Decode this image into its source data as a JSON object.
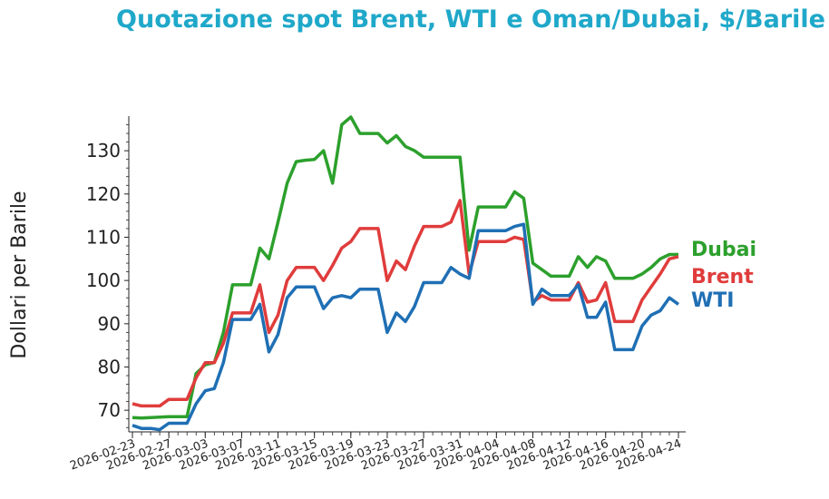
{
  "chart_data": {
    "type": "line",
    "title": "Quotazione spot Brent, WTI e Oman/Dubai, $/Barile",
    "xlabel": "",
    "ylabel": "Dollari per Barile",
    "xlim": [
      "2026-02-23",
      "2026-04-24"
    ],
    "ylim": [
      65,
      138
    ],
    "yticks": [
      70,
      80,
      90,
      100,
      110,
      120,
      130
    ],
    "xticks": [
      "2026-02-23",
      "2026-02-27",
      "2026-03-03",
      "2026-03-07",
      "2026-03-11",
      "2026-03-15",
      "2026-03-19",
      "2026-03-23",
      "2026-03-27",
      "2026-03-31",
      "2026-04-04",
      "2026-04-08",
      "2026-04-12",
      "2026-04-16",
      "2026-04-20",
      "2026-04-24"
    ],
    "grid": false,
    "legend": "none (labels at line ends, right)",
    "series": [
      {
        "name": "Dubai",
        "color": "#2ca02c",
        "points": [
          [
            "2026-02-23",
            68.3
          ],
          [
            "2026-02-24",
            68.2
          ],
          [
            "2026-02-25",
            68.3
          ],
          [
            "2026-02-26",
            68.4
          ],
          [
            "2026-02-27",
            68.5
          ],
          [
            "2026-02-28",
            68.5
          ],
          [
            "2026-03-01",
            68.5
          ],
          [
            "2026-03-02",
            78.5
          ],
          [
            "2026-03-03",
            80.5
          ],
          [
            "2026-03-04",
            81.0
          ],
          [
            "2026-03-05",
            88.0
          ],
          [
            "2026-03-06",
            99.0
          ],
          [
            "2026-03-07",
            99.0
          ],
          [
            "2026-03-08",
            99.0
          ],
          [
            "2026-03-09",
            107.5
          ],
          [
            "2026-03-10",
            105.0
          ],
          [
            "2026-03-11",
            113.5
          ],
          [
            "2026-03-12",
            122.5
          ],
          [
            "2026-03-13",
            127.5
          ],
          [
            "2026-03-14",
            127.8
          ],
          [
            "2026-03-15",
            128.0
          ],
          [
            "2026-03-16",
            130.0
          ],
          [
            "2026-03-17",
            122.5
          ],
          [
            "2026-03-18",
            136.0
          ],
          [
            "2026-03-19",
            137.8
          ],
          [
            "2026-03-20",
            134.0
          ],
          [
            "2026-03-21",
            134.0
          ],
          [
            "2026-03-22",
            134.0
          ],
          [
            "2026-03-23",
            131.8
          ],
          [
            "2026-03-24",
            133.5
          ],
          [
            "2026-03-25",
            131.0
          ],
          [
            "2026-03-26",
            130.0
          ],
          [
            "2026-03-27",
            128.5
          ],
          [
            "2026-03-28",
            128.5
          ],
          [
            "2026-03-29",
            128.5
          ],
          [
            "2026-03-30",
            128.5
          ],
          [
            "2026-03-31",
            128.5
          ],
          [
            "2026-04-01",
            107.0
          ],
          [
            "2026-04-02",
            117.0
          ],
          [
            "2026-04-03",
            117.0
          ],
          [
            "2026-04-04",
            117.0
          ],
          [
            "2026-04-05",
            117.0
          ],
          [
            "2026-04-06",
            120.5
          ],
          [
            "2026-04-07",
            119.0
          ],
          [
            "2026-04-08",
            104.0
          ],
          [
            "2026-04-09",
            102.5
          ],
          [
            "2026-04-10",
            101.0
          ],
          [
            "2026-04-11",
            101.0
          ],
          [
            "2026-04-12",
            101.0
          ],
          [
            "2026-04-13",
            105.5
          ],
          [
            "2026-04-14",
            103.0
          ],
          [
            "2026-04-15",
            105.5
          ],
          [
            "2026-04-16",
            104.5
          ],
          [
            "2026-04-17",
            100.5
          ],
          [
            "2026-04-18",
            100.5
          ],
          [
            "2026-04-19",
            100.5
          ],
          [
            "2026-04-20",
            101.5
          ],
          [
            "2026-04-21",
            103.0
          ],
          [
            "2026-04-22",
            105.0
          ],
          [
            "2026-04-23",
            106.0
          ],
          [
            "2026-04-24",
            106.0
          ]
        ]
      },
      {
        "name": "Brent",
        "color": "#e03c3c",
        "points": [
          [
            "2026-02-23",
            71.5
          ],
          [
            "2026-02-24",
            71.0
          ],
          [
            "2026-02-25",
            71.0
          ],
          [
            "2026-02-26",
            71.0
          ],
          [
            "2026-02-27",
            72.5
          ],
          [
            "2026-02-28",
            72.5
          ],
          [
            "2026-03-01",
            72.5
          ],
          [
            "2026-03-02",
            77.5
          ],
          [
            "2026-03-03",
            81.0
          ],
          [
            "2026-03-04",
            81.0
          ],
          [
            "2026-03-05",
            85.5
          ],
          [
            "2026-03-06",
            92.5
          ],
          [
            "2026-03-07",
            92.5
          ],
          [
            "2026-03-08",
            92.5
          ],
          [
            "2026-03-09",
            99.0
          ],
          [
            "2026-03-10",
            88.0
          ],
          [
            "2026-03-11",
            92.0
          ],
          [
            "2026-03-12",
            100.0
          ],
          [
            "2026-03-13",
            103.0
          ],
          [
            "2026-03-14",
            103.0
          ],
          [
            "2026-03-15",
            103.0
          ],
          [
            "2026-03-16",
            100.0
          ],
          [
            "2026-03-17",
            103.5
          ],
          [
            "2026-03-18",
            107.5
          ],
          [
            "2026-03-19",
            109.0
          ],
          [
            "2026-03-20",
            112.0
          ],
          [
            "2026-03-21",
            112.0
          ],
          [
            "2026-03-22",
            112.0
          ],
          [
            "2026-03-23",
            100.0
          ],
          [
            "2026-03-24",
            104.5
          ],
          [
            "2026-03-25",
            102.5
          ],
          [
            "2026-03-26",
            108.0
          ],
          [
            "2026-03-27",
            112.5
          ],
          [
            "2026-03-28",
            112.5
          ],
          [
            "2026-03-29",
            112.5
          ],
          [
            "2026-03-30",
            113.5
          ],
          [
            "2026-03-31",
            118.5
          ],
          [
            "2026-04-01",
            101.5
          ],
          [
            "2026-04-02",
            109.0
          ],
          [
            "2026-04-03",
            109.0
          ],
          [
            "2026-04-04",
            109.0
          ],
          [
            "2026-04-05",
            109.0
          ],
          [
            "2026-04-06",
            110.0
          ],
          [
            "2026-04-07",
            109.5
          ],
          [
            "2026-04-08",
            95.0
          ],
          [
            "2026-04-09",
            96.5
          ],
          [
            "2026-04-10",
            95.5
          ],
          [
            "2026-04-11",
            95.5
          ],
          [
            "2026-04-12",
            95.5
          ],
          [
            "2026-04-13",
            99.5
          ],
          [
            "2026-04-14",
            95.0
          ],
          [
            "2026-04-15",
            95.5
          ],
          [
            "2026-04-16",
            99.5
          ],
          [
            "2026-04-17",
            90.5
          ],
          [
            "2026-04-18",
            90.5
          ],
          [
            "2026-04-19",
            90.5
          ],
          [
            "2026-04-20",
            95.5
          ],
          [
            "2026-04-21",
            98.5
          ],
          [
            "2026-04-22",
            101.5
          ],
          [
            "2026-04-23",
            105.0
          ],
          [
            "2026-04-24",
            105.5
          ]
        ]
      },
      {
        "name": "WTI",
        "color": "#1f6fb4",
        "points": [
          [
            "2026-02-23",
            66.5
          ],
          [
            "2026-02-24",
            65.8
          ],
          [
            "2026-02-25",
            65.8
          ],
          [
            "2026-02-26",
            65.5
          ],
          [
            "2026-02-27",
            67.0
          ],
          [
            "2026-02-28",
            67.0
          ],
          [
            "2026-03-01",
            67.0
          ],
          [
            "2026-03-02",
            71.5
          ],
          [
            "2026-03-03",
            74.5
          ],
          [
            "2026-03-04",
            75.0
          ],
          [
            "2026-03-05",
            81.0
          ],
          [
            "2026-03-06",
            91.0
          ],
          [
            "2026-03-07",
            91.0
          ],
          [
            "2026-03-08",
            91.0
          ],
          [
            "2026-03-09",
            94.5
          ],
          [
            "2026-03-10",
            83.5
          ],
          [
            "2026-03-11",
            87.5
          ],
          [
            "2026-03-12",
            96.0
          ],
          [
            "2026-03-13",
            98.5
          ],
          [
            "2026-03-14",
            98.5
          ],
          [
            "2026-03-15",
            98.5
          ],
          [
            "2026-03-16",
            93.5
          ],
          [
            "2026-03-17",
            96.0
          ],
          [
            "2026-03-18",
            96.5
          ],
          [
            "2026-03-19",
            96.0
          ],
          [
            "2026-03-20",
            98.0
          ],
          [
            "2026-03-21",
            98.0
          ],
          [
            "2026-03-22",
            98.0
          ],
          [
            "2026-03-23",
            88.0
          ],
          [
            "2026-03-24",
            92.5
          ],
          [
            "2026-03-25",
            90.5
          ],
          [
            "2026-03-26",
            94.0
          ],
          [
            "2026-03-27",
            99.5
          ],
          [
            "2026-03-28",
            99.5
          ],
          [
            "2026-03-29",
            99.5
          ],
          [
            "2026-03-30",
            103.0
          ],
          [
            "2026-03-31",
            101.5
          ],
          [
            "2026-04-01",
            100.5
          ],
          [
            "2026-04-02",
            111.5
          ],
          [
            "2026-04-03",
            111.5
          ],
          [
            "2026-04-04",
            111.5
          ],
          [
            "2026-04-05",
            111.5
          ],
          [
            "2026-04-06",
            112.5
          ],
          [
            "2026-04-07",
            113.0
          ],
          [
            "2026-04-08",
            94.5
          ],
          [
            "2026-04-09",
            98.0
          ],
          [
            "2026-04-10",
            96.5
          ],
          [
            "2026-04-11",
            96.5
          ],
          [
            "2026-04-12",
            96.5
          ],
          [
            "2026-04-13",
            99.0
          ],
          [
            "2026-04-14",
            91.5
          ],
          [
            "2026-04-15",
            91.5
          ],
          [
            "2026-04-16",
            95.0
          ],
          [
            "2026-04-17",
            84.0
          ],
          [
            "2026-04-18",
            84.0
          ],
          [
            "2026-04-19",
            84.0
          ],
          [
            "2026-04-20",
            89.5
          ],
          [
            "2026-04-21",
            92.0
          ],
          [
            "2026-04-22",
            93.0
          ],
          [
            "2026-04-23",
            96.0
          ],
          [
            "2026-04-24",
            94.5
          ]
        ]
      }
    ]
  }
}
